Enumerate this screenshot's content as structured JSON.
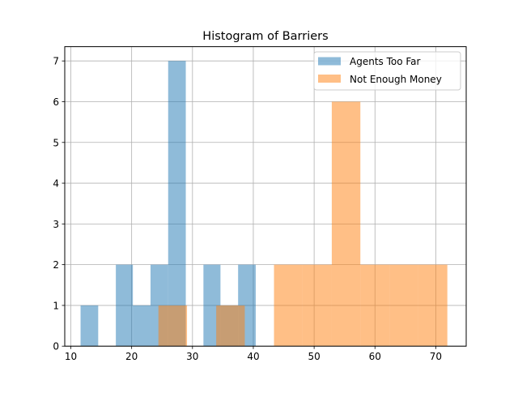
{
  "chart_data": {
    "type": "bar",
    "subtype": "histogram",
    "title": "Histogram of Barriers",
    "xlabel": "",
    "ylabel": "",
    "xlim": [
      9,
      75
    ],
    "ylim": [
      0,
      7.35
    ],
    "xticks": [
      10,
      20,
      30,
      40,
      50,
      60,
      70
    ],
    "yticks": [
      0,
      1,
      2,
      3,
      4,
      5,
      6,
      7
    ],
    "grid": true,
    "legend_position": "upper right",
    "series": [
      {
        "name": "Agents Too Far",
        "color": "#1f77b4",
        "alpha": 0.5,
        "bins": [
          {
            "x0": 11.6,
            "x1": 14.5,
            "count": 1
          },
          {
            "x0": 14.5,
            "x1": 17.4,
            "count": 0
          },
          {
            "x0": 17.4,
            "x1": 20.2,
            "count": 2
          },
          {
            "x0": 20.2,
            "x1": 23.1,
            "count": 1
          },
          {
            "x0": 23.1,
            "x1": 26.0,
            "count": 2
          },
          {
            "x0": 26.0,
            "x1": 28.9,
            "count": 7
          },
          {
            "x0": 28.9,
            "x1": 31.8,
            "count": 0
          },
          {
            "x0": 31.8,
            "x1": 34.6,
            "count": 2
          },
          {
            "x0": 34.6,
            "x1": 37.5,
            "count": 1
          },
          {
            "x0": 37.5,
            "x1": 40.4,
            "count": 2
          }
        ]
      },
      {
        "name": "Not Enough Money",
        "color": "#ff7f0e",
        "alpha": 0.5,
        "bins": [
          {
            "x0": 24.4,
            "x1": 29.1,
            "count": 1
          },
          {
            "x0": 29.1,
            "x1": 33.9,
            "count": 0
          },
          {
            "x0": 33.9,
            "x1": 38.6,
            "count": 1
          },
          {
            "x0": 38.6,
            "x1": 43.4,
            "count": 0
          },
          {
            "x0": 43.4,
            "x1": 48.1,
            "count": 2
          },
          {
            "x0": 48.1,
            "x1": 52.9,
            "count": 2
          },
          {
            "x0": 52.9,
            "x1": 57.6,
            "count": 6
          },
          {
            "x0": 57.6,
            "x1": 62.4,
            "count": 2
          },
          {
            "x0": 62.4,
            "x1": 67.1,
            "count": 2
          },
          {
            "x0": 67.1,
            "x1": 71.9,
            "count": 2
          }
        ]
      }
    ]
  }
}
